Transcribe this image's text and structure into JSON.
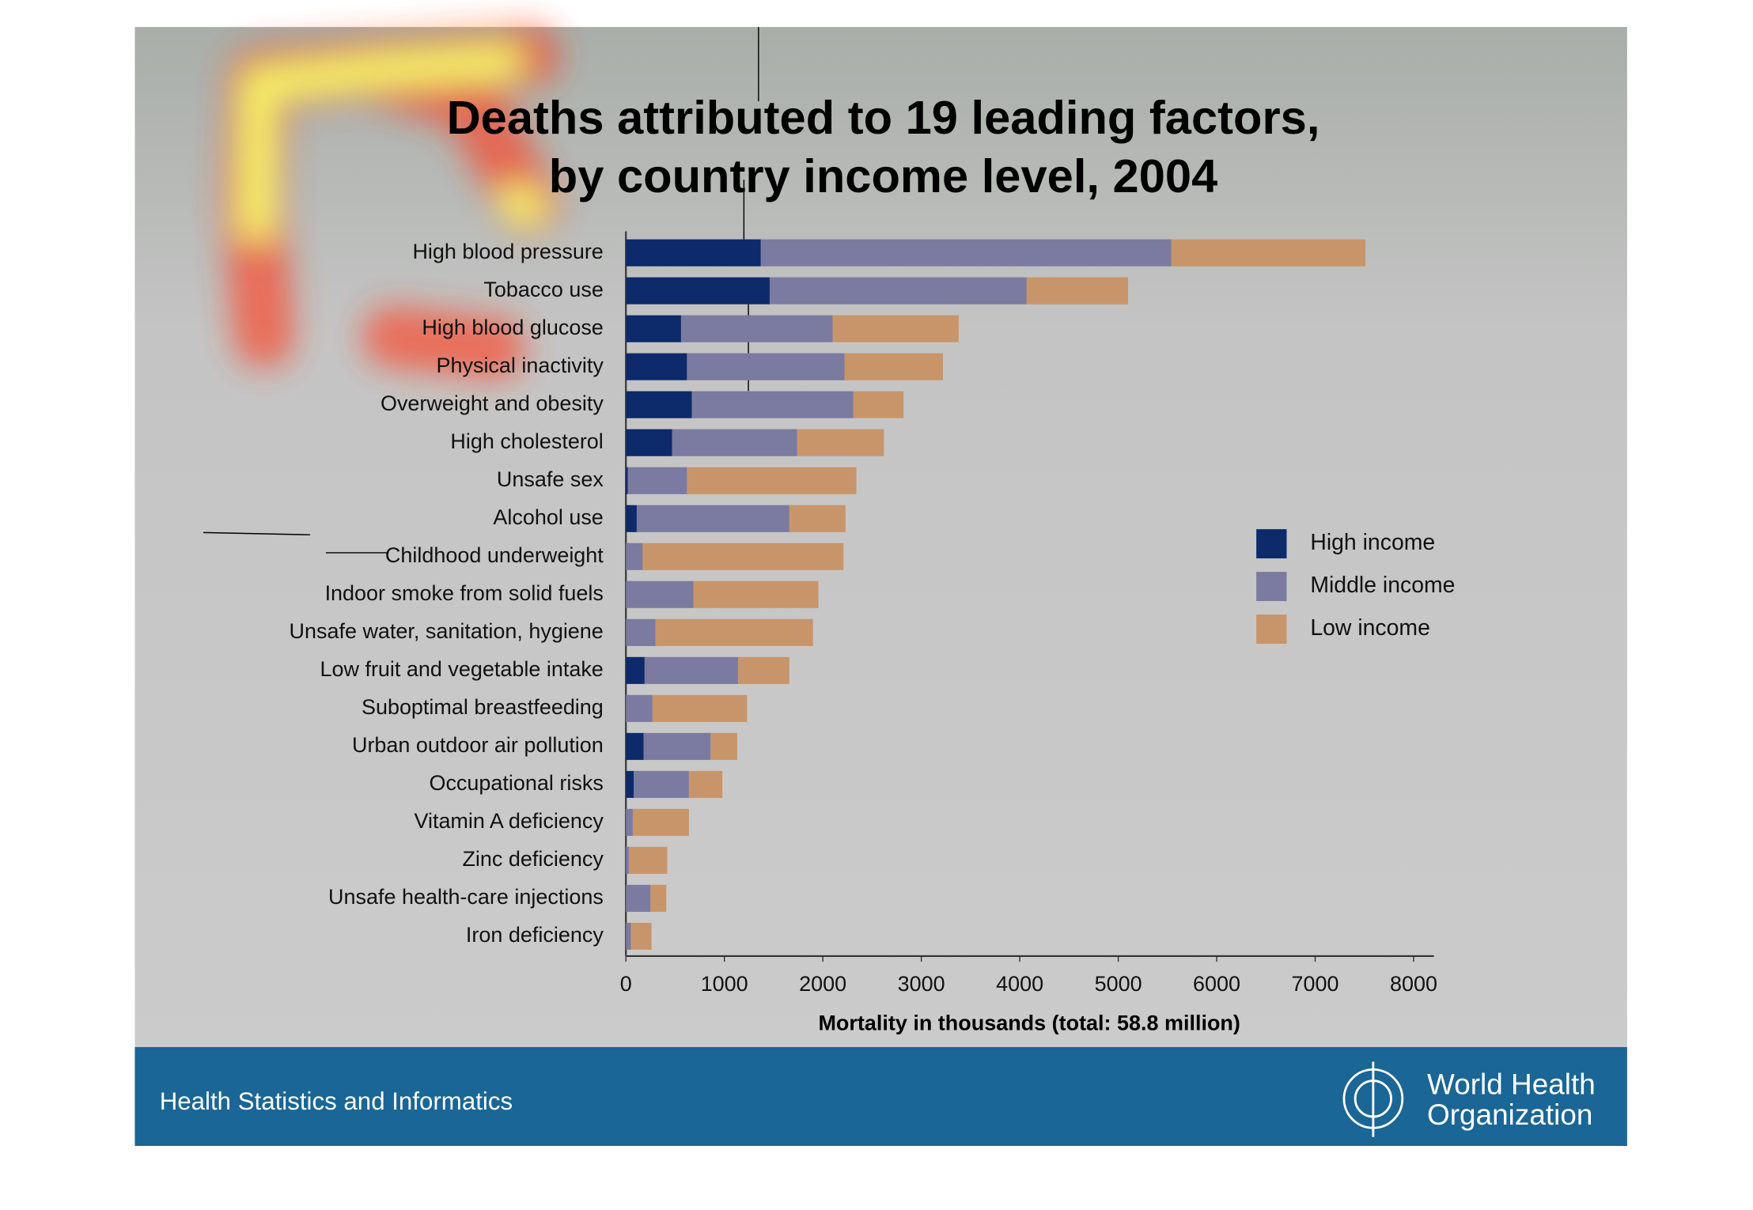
{
  "chart_data": {
    "type": "stacked-barh",
    "title_lines": [
      "Deaths attributed to 19 leading factors,",
      "by country income level, 2004"
    ],
    "categories": [
      "High blood pressure",
      "Tobacco use",
      "High blood glucose",
      "Physical inactivity",
      "Overweight and obesity",
      "High cholesterol",
      "Unsafe sex",
      "Alcohol use",
      "Childhood underweight",
      "Indoor smoke from solid fuels",
      "Unsafe water, sanitation, hygiene",
      "Low fruit and vegetable intake",
      "Suboptimal breastfeeding",
      "Urban outdoor air pollution",
      "Occupational risks",
      "Vitamin A deficiency",
      "Zinc deficiency",
      "Unsafe health-care injections",
      "Iron deficiency"
    ],
    "series": [
      {
        "name": "High income",
        "color": "#0d2a6b",
        "values": [
          1370,
          1460,
          560,
          620,
          670,
          470,
          20,
          110,
          0,
          0,
          0,
          190,
          0,
          180,
          80,
          0,
          0,
          0,
          0
        ]
      },
      {
        "name": "Middle income",
        "color": "#7b7aa0",
        "values": [
          4170,
          2610,
          1540,
          1600,
          1640,
          1270,
          600,
          1550,
          170,
          685,
          300,
          950,
          270,
          680,
          560,
          70,
          30,
          250,
          50
        ]
      },
      {
        "name": "Low income",
        "color": "#c8956a",
        "values": [
          1970,
          1030,
          1280,
          1000,
          510,
          880,
          1720,
          570,
          2040,
          1270,
          1600,
          520,
          960,
          270,
          340,
          570,
          390,
          160,
          210
        ]
      }
    ],
    "xlabel": "Mortality in thousands (total: 58.8 million)",
    "xlim": [
      0,
      8000
    ],
    "xticks": [
      0,
      1000,
      2000,
      3000,
      4000,
      5000,
      6000,
      7000,
      8000
    ],
    "legend": "right"
  },
  "footer": {
    "text": "Health Statistics and Informatics",
    "logo_lines": [
      "World Health",
      "Organization"
    ]
  }
}
